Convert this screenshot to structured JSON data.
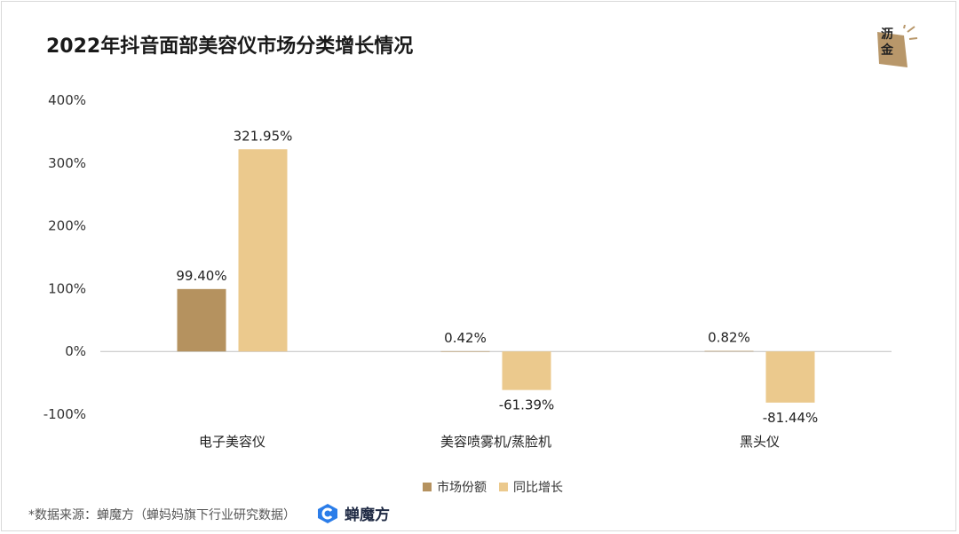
{
  "title": "2022年抖音面部美容仪市场分类增长情况",
  "logo": {
    "char1": "沥",
    "char2": "金"
  },
  "chart_data": {
    "type": "bar",
    "categories": [
      "电子美容仪",
      "美容喷雾机/蒸脸机",
      "黑头仪"
    ],
    "series": [
      {
        "name": "市场份额",
        "values": [
          99.4,
          0.42,
          0.82
        ],
        "labels": [
          "99.40%",
          "0.42%",
          "0.82%"
        ],
        "color": "#b5925f"
      },
      {
        "name": "同比增长",
        "values": [
          321.95,
          -61.39,
          -81.44
        ],
        "labels": [
          "321.95%",
          "-61.39%",
          "-81.44%"
        ],
        "color": "#ebc98d"
      }
    ],
    "ylim": [
      -100,
      400
    ],
    "yticks": [
      "400%",
      "300%",
      "200%",
      "100%",
      "0%",
      "-100%"
    ],
    "ytick_values": [
      400,
      300,
      200,
      100,
      0,
      -100
    ],
    "legend": "bottom",
    "grid": false
  },
  "source": "*数据来源：蝉魔方（蝉妈妈旗下行业研究数据）",
  "brand": "蝉魔方",
  "colors": {
    "share": "#b5925f",
    "growth": "#ebc98d",
    "logo": "#b8976a"
  }
}
